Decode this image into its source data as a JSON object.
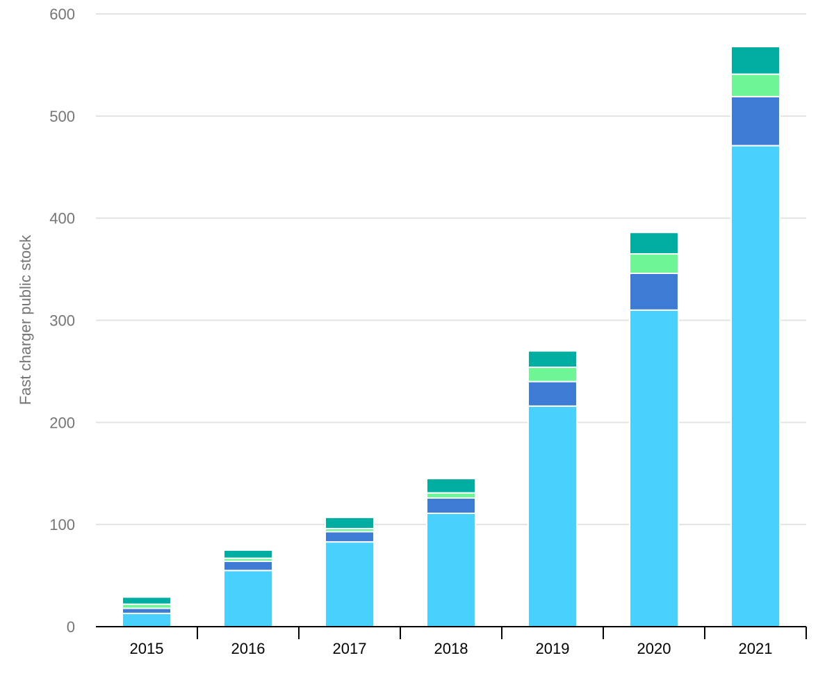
{
  "chart_data": {
    "type": "bar",
    "stacked": true,
    "title": "",
    "xlabel": "",
    "ylabel": "Fast charger public stock",
    "ylim": [
      0,
      600
    ],
    "yticks": [
      0,
      100,
      200,
      300,
      400,
      500,
      600
    ],
    "grid": true,
    "legend": "none",
    "categories": [
      "2015",
      "2016",
      "2017",
      "2018",
      "2019",
      "2020",
      "2021"
    ],
    "series": [
      {
        "color": "#48d1ff",
        "values": [
          13,
          55,
          83,
          111,
          216,
          310,
          471
        ]
      },
      {
        "color": "#3d7bd4",
        "values": [
          5,
          9,
          10,
          15,
          24,
          36,
          48
        ]
      },
      {
        "color": "#6ef595",
        "values": [
          4,
          3,
          3,
          5,
          14,
          19,
          22
        ]
      },
      {
        "color": "#00ada1",
        "values": [
          7,
          8,
          11,
          14,
          16,
          21,
          27
        ]
      }
    ]
  }
}
